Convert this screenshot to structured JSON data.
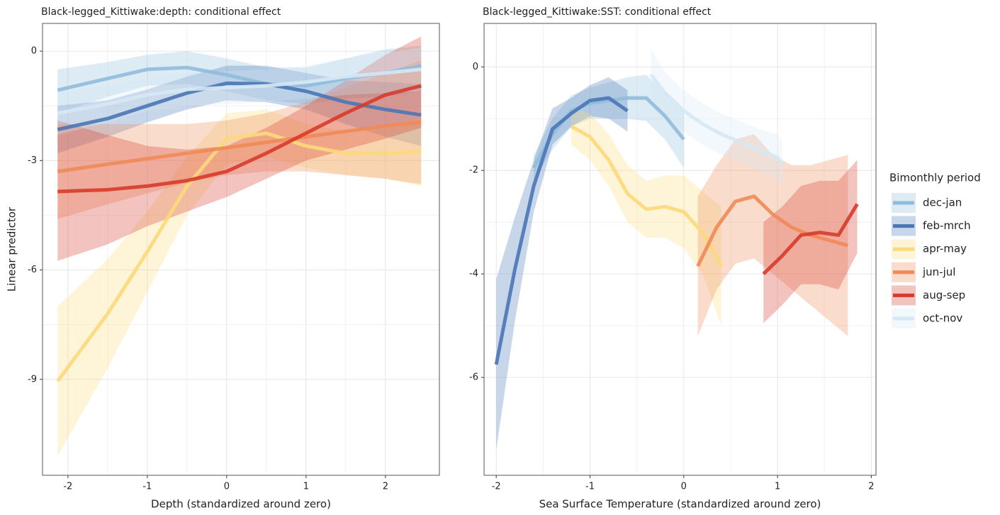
{
  "chart_data": [
    {
      "type": "line",
      "title": "Black-legged_Kittiwake:depth: conditional effect",
      "xlabel": "Depth (standardized around zero)",
      "ylabel": "Linear predictor",
      "x": [
        -2.13,
        -1.5,
        -1,
        -0.5,
        0,
        0.5,
        1,
        1.5,
        2,
        2.45
      ],
      "xlim": [
        -2.32,
        2.68
      ],
      "ylim": [
        -11.63,
        0.76
      ],
      "xticks": [
        -2,
        -1,
        0,
        1,
        2
      ],
      "yticks": [
        -9,
        -6,
        -3,
        0
      ],
      "grid": true,
      "series": [
        {
          "color": "#8fbcdc",
          "values": [
            -1.07,
            -0.75,
            -0.5,
            -0.45,
            -0.65,
            -0.9,
            -0.95,
            -0.75,
            -0.6,
            -0.4
          ],
          "lower": [
            -1.7,
            -1.25,
            -0.95,
            -0.9,
            -1.1,
            -1.35,
            -1.45,
            -1.3,
            -1.25,
            -1.1
          ],
          "upper": [
            -0.5,
            -0.3,
            -0.1,
            0.0,
            -0.2,
            -0.45,
            -0.45,
            -0.2,
            0.05,
            0.15
          ]
        },
        {
          "color": "#4a76b6",
          "values": [
            -2.15,
            -1.85,
            -1.5,
            -1.15,
            -0.88,
            -0.9,
            -1.1,
            -1.4,
            -1.6,
            -1.75
          ],
          "lower": [
            -2.8,
            -2.35,
            -1.95,
            -1.6,
            -1.35,
            -1.4,
            -1.6,
            -2.0,
            -2.35,
            -2.6
          ],
          "upper": [
            -1.5,
            -1.35,
            -1.05,
            -0.7,
            -0.4,
            -0.4,
            -0.6,
            -0.8,
            -0.85,
            -0.9
          ]
        },
        {
          "color": "#fcd97a",
          "values": [
            -9.05,
            -7.2,
            -5.5,
            -3.7,
            -2.4,
            -2.25,
            -2.6,
            -2.8,
            -2.8,
            -2.75
          ],
          "lower": [
            -11.1,
            -8.7,
            -6.6,
            -4.5,
            -3.1,
            -2.9,
            -3.2,
            -3.4,
            -3.5,
            -3.7
          ],
          "upper": [
            -7.0,
            -5.7,
            -4.4,
            -2.9,
            -1.7,
            -1.6,
            -2.0,
            -2.2,
            -2.1,
            -1.8
          ]
        },
        {
          "color": "#f08a58",
          "values": [
            -3.3,
            -3.1,
            -2.95,
            -2.8,
            -2.65,
            -2.5,
            -2.35,
            -2.2,
            -2.05,
            -1.95
          ],
          "lower": [
            -4.6,
            -4.2,
            -3.9,
            -3.6,
            -3.4,
            -3.3,
            -3.3,
            -3.4,
            -3.5,
            -3.65
          ],
          "upper": [
            -2.0,
            -2.0,
            -2.0,
            -2.0,
            -1.9,
            -1.7,
            -1.4,
            -1.0,
            -0.6,
            -0.25
          ]
        },
        {
          "color": "#d73b2b",
          "values": [
            -3.85,
            -3.8,
            -3.7,
            -3.55,
            -3.3,
            -2.8,
            -2.25,
            -1.7,
            -1.2,
            -0.95
          ],
          "lower": [
            -5.75,
            -5.3,
            -4.8,
            -4.4,
            -4.0,
            -3.5,
            -3.0,
            -2.7,
            -2.4,
            -2.1
          ],
          "upper": [
            -1.9,
            -2.3,
            -2.6,
            -2.7,
            -2.6,
            -2.1,
            -1.5,
            -0.8,
            -0.1,
            0.4
          ]
        },
        {
          "color": "#d5e8f4",
          "values": [
            -1.7,
            -1.45,
            -1.2,
            -1.05,
            -1.0,
            -0.95,
            -0.85,
            -0.7,
            -0.6,
            -0.5
          ],
          "lower": [
            -2.3,
            -1.95,
            -1.65,
            -1.5,
            -1.45,
            -1.4,
            -1.3,
            -1.2,
            -1.15,
            -1.1
          ],
          "upper": [
            -1.1,
            -0.95,
            -0.75,
            -0.6,
            -0.55,
            -0.5,
            -0.4,
            -0.2,
            -0.05,
            0.1
          ]
        }
      ]
    },
    {
      "type": "line",
      "title": "Black-legged_Kittiwake:SST: conditional effect",
      "xlabel": "Sea Surface Temperature (standardized around zero)",
      "xlim": [
        -2.13,
        2.05
      ],
      "ylim": [
        -7.89,
        0.84
      ],
      "xticks": [
        -2,
        -1,
        0,
        1,
        2
      ],
      "yticks": [
        -6,
        -4,
        -2,
        0
      ],
      "grid": true,
      "legend": {
        "title": "Bimonthly period",
        "position": "right"
      },
      "series": [
        {
          "name": "dec-jan",
          "color": "#8fbcdc",
          "x": [
            -1.6,
            -1.4,
            -1.2,
            -1,
            -0.8,
            -0.6,
            -0.4,
            -0.2,
            0
          ],
          "values": [
            -1.95,
            -1.3,
            -0.85,
            -0.7,
            -0.65,
            -0.6,
            -0.6,
            -0.95,
            -1.4
          ],
          "lower": [
            -2.2,
            -1.6,
            -1.15,
            -1.0,
            -1.0,
            -1.0,
            -1.05,
            -1.4,
            -1.95
          ],
          "upper": [
            -1.7,
            -1.0,
            -0.55,
            -0.4,
            -0.3,
            -0.2,
            -0.15,
            -0.5,
            -0.85
          ]
        },
        {
          "name": "feb-mrch",
          "color": "#4a76b6",
          "x": [
            -2,
            -1.8,
            -1.6,
            -1.4,
            -1.2,
            -1,
            -0.8,
            -0.6
          ],
          "values": [
            -5.75,
            -3.9,
            -2.3,
            -1.2,
            -0.9,
            -0.65,
            -0.6,
            -0.85
          ],
          "lower": [
            -7.4,
            -4.9,
            -2.8,
            -1.5,
            -1.15,
            -0.95,
            -1.0,
            -1.25
          ],
          "upper": [
            -4.1,
            -2.9,
            -1.8,
            -0.8,
            -0.6,
            -0.35,
            -0.2,
            -0.45
          ]
        },
        {
          "name": "apr-may",
          "color": "#fcd97a",
          "x": [
            -1.2,
            -1,
            -0.8,
            -0.6,
            -0.4,
            -0.2,
            0,
            0.2,
            0.4
          ],
          "values": [
            -1.15,
            -1.35,
            -1.8,
            -2.45,
            -2.75,
            -2.7,
            -2.8,
            -3.2,
            -3.85
          ],
          "lower": [
            -1.5,
            -1.8,
            -2.3,
            -3.0,
            -3.3,
            -3.3,
            -3.5,
            -4.0,
            -5.0
          ],
          "upper": [
            -0.8,
            -0.9,
            -1.3,
            -1.9,
            -2.2,
            -2.1,
            -2.1,
            -2.4,
            -2.7
          ]
        },
        {
          "name": "jun-jul",
          "color": "#f08a58",
          "x": [
            0.15,
            0.35,
            0.55,
            0.75,
            0.95,
            1.15,
            1.35,
            1.55,
            1.75
          ],
          "values": [
            -3.85,
            -3.1,
            -2.6,
            -2.5,
            -2.85,
            -3.1,
            -3.25,
            -3.35,
            -3.45
          ],
          "lower": [
            -5.2,
            -4.3,
            -3.8,
            -3.7,
            -4.0,
            -4.3,
            -4.6,
            -4.9,
            -5.2
          ],
          "upper": [
            -2.5,
            -1.9,
            -1.4,
            -1.3,
            -1.7,
            -1.9,
            -1.9,
            -1.8,
            -1.7
          ]
        },
        {
          "name": "aug-sep",
          "color": "#d73b2b",
          "x": [
            0.85,
            1.05,
            1.25,
            1.45,
            1.65,
            1.85
          ],
          "values": [
            -4.0,
            -3.65,
            -3.25,
            -3.2,
            -3.25,
            -2.65
          ],
          "lower": [
            -4.95,
            -4.6,
            -4.2,
            -4.2,
            -4.3,
            -3.6
          ],
          "upper": [
            -3.0,
            -2.7,
            -2.3,
            -2.2,
            -2.2,
            -1.8
          ]
        },
        {
          "name": "oct-nov",
          "color": "#d5e8f4",
          "x": [
            -0.35,
            -0.2,
            0,
            0.2,
            0.4,
            0.6,
            0.8,
            1,
            1.05
          ],
          "values": [
            -0.15,
            -0.5,
            -0.85,
            -1.1,
            -1.3,
            -1.45,
            -1.6,
            -1.75,
            -1.9
          ],
          "lower": [
            -0.6,
            -0.9,
            -1.25,
            -1.5,
            -1.7,
            -1.85,
            -2.0,
            -2.2,
            -2.35
          ],
          "upper": [
            0.35,
            -0.1,
            -0.45,
            -0.7,
            -0.9,
            -1.05,
            -1.2,
            -1.3,
            -1.45
          ]
        }
      ]
    }
  ]
}
